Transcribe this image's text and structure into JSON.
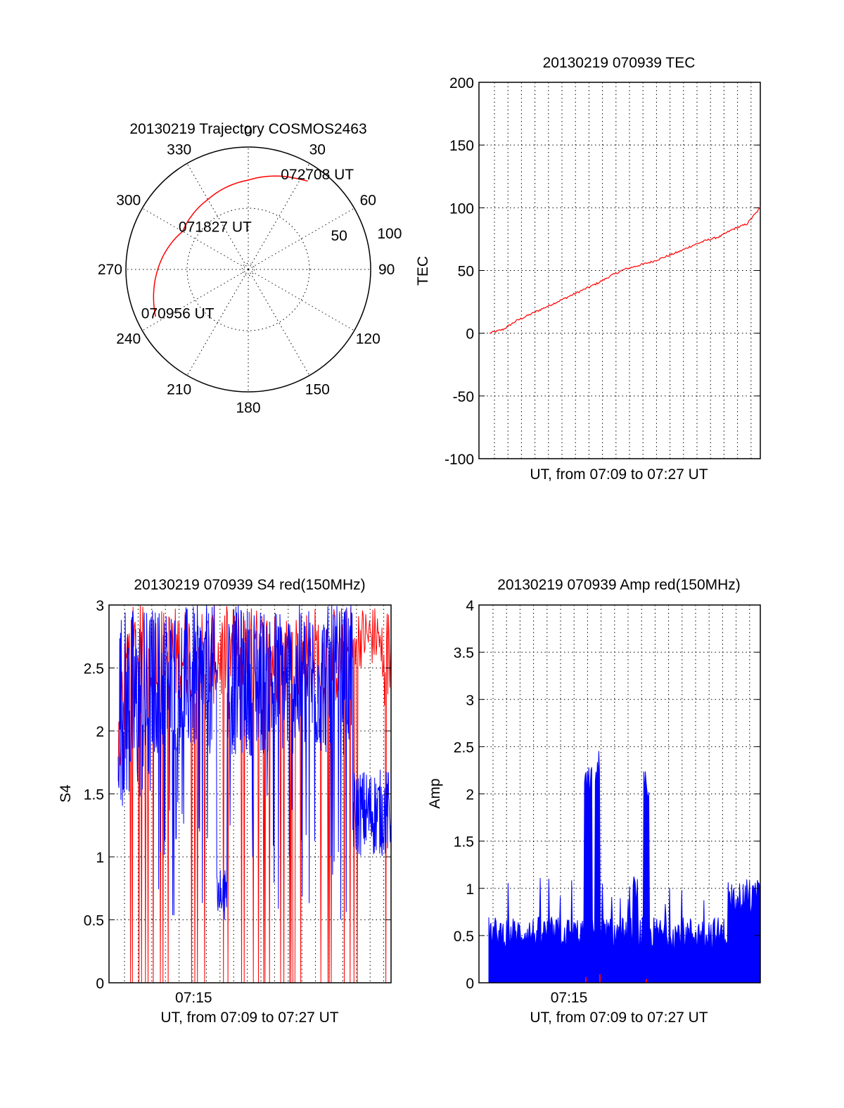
{
  "page": {
    "background": "#ffffff"
  },
  "chart_data": [
    {
      "type": "polar",
      "title": "20130219 Trajectory COSMOS2463",
      "angular_ticks": [
        "0",
        "30",
        "60",
        "90",
        "120",
        "150",
        "180",
        "210",
        "240",
        "270",
        "300",
        "330"
      ],
      "radial_ticks": [
        "50",
        "100"
      ],
      "trajectory_color": "#ff0000",
      "trajectory": [
        {
          "az": 243,
          "r": 85
        },
        {
          "az": 270,
          "r": 74
        },
        {
          "az": 300,
          "r": 62
        },
        {
          "az": 330,
          "r": 66
        },
        {
          "az": 0,
          "r": 73
        },
        {
          "az": 30,
          "r": 85
        },
        {
          "az": 34,
          "r": 87
        }
      ],
      "annotations": [
        {
          "text": "072708 UT",
          "az": 36,
          "r": 96
        },
        {
          "text": "071827 UT",
          "az": 322,
          "r": 44
        },
        {
          "text": "070956 UT",
          "az": 238,
          "r": 68
        }
      ]
    },
    {
      "type": "line",
      "title": "20130219 070939 TEC",
      "xlabel": "UT, from 07:09 to 07:27 UT",
      "ylabel": "TEC",
      "ylim": [
        -100,
        200
      ],
      "yticks": [
        "200",
        "150",
        "100",
        "50",
        "0",
        "-50",
        "-100"
      ],
      "grid": true,
      "series": [
        {
          "color": "#ff0000",
          "x": [
            0,
            0.05,
            0.1,
            0.2,
            0.3,
            0.4,
            0.45,
            0.5,
            0.55,
            0.6,
            0.65,
            0.7,
            0.75,
            0.8,
            0.85,
            0.9,
            0.95,
            1.0
          ],
          "y": [
            0,
            3,
            10,
            20,
            30,
            40,
            46,
            51,
            54,
            57,
            61,
            65,
            70,
            74,
            77,
            83,
            87,
            100
          ]
        }
      ]
    },
    {
      "type": "line",
      "title": "20130219 070939 S4 red(150MHz)",
      "xlabel": "UT, from 07:09 to 07:27 UT",
      "ylabel": "S4",
      "ylim": [
        0,
        3
      ],
      "yticks": [
        "3",
        "2.5",
        "2",
        "1.5",
        "1",
        "0.5",
        "0"
      ],
      "xticks": [
        {
          "label": "07:15",
          "at": 0.3
        }
      ],
      "grid": true,
      "series": [
        {
          "color": "#ff0000"
        },
        {
          "color": "#0000ff"
        }
      ]
    },
    {
      "type": "bar",
      "title": "20130219 070939 Amp red(150MHz)",
      "xlabel": "UT, from 07:09 to 07:27 UT",
      "ylabel": "Amp",
      "ylim": [
        0,
        4
      ],
      "yticks": [
        "4",
        "3.5",
        "3",
        "2.5",
        "2",
        "1.5",
        "1",
        "0.5",
        "0"
      ],
      "xticks": [
        {
          "label": "07:15",
          "at": 0.32
        }
      ],
      "grid": true,
      "series": [
        {
          "color": "#0000ff"
        },
        {
          "color": "#ff0000"
        }
      ]
    }
  ]
}
